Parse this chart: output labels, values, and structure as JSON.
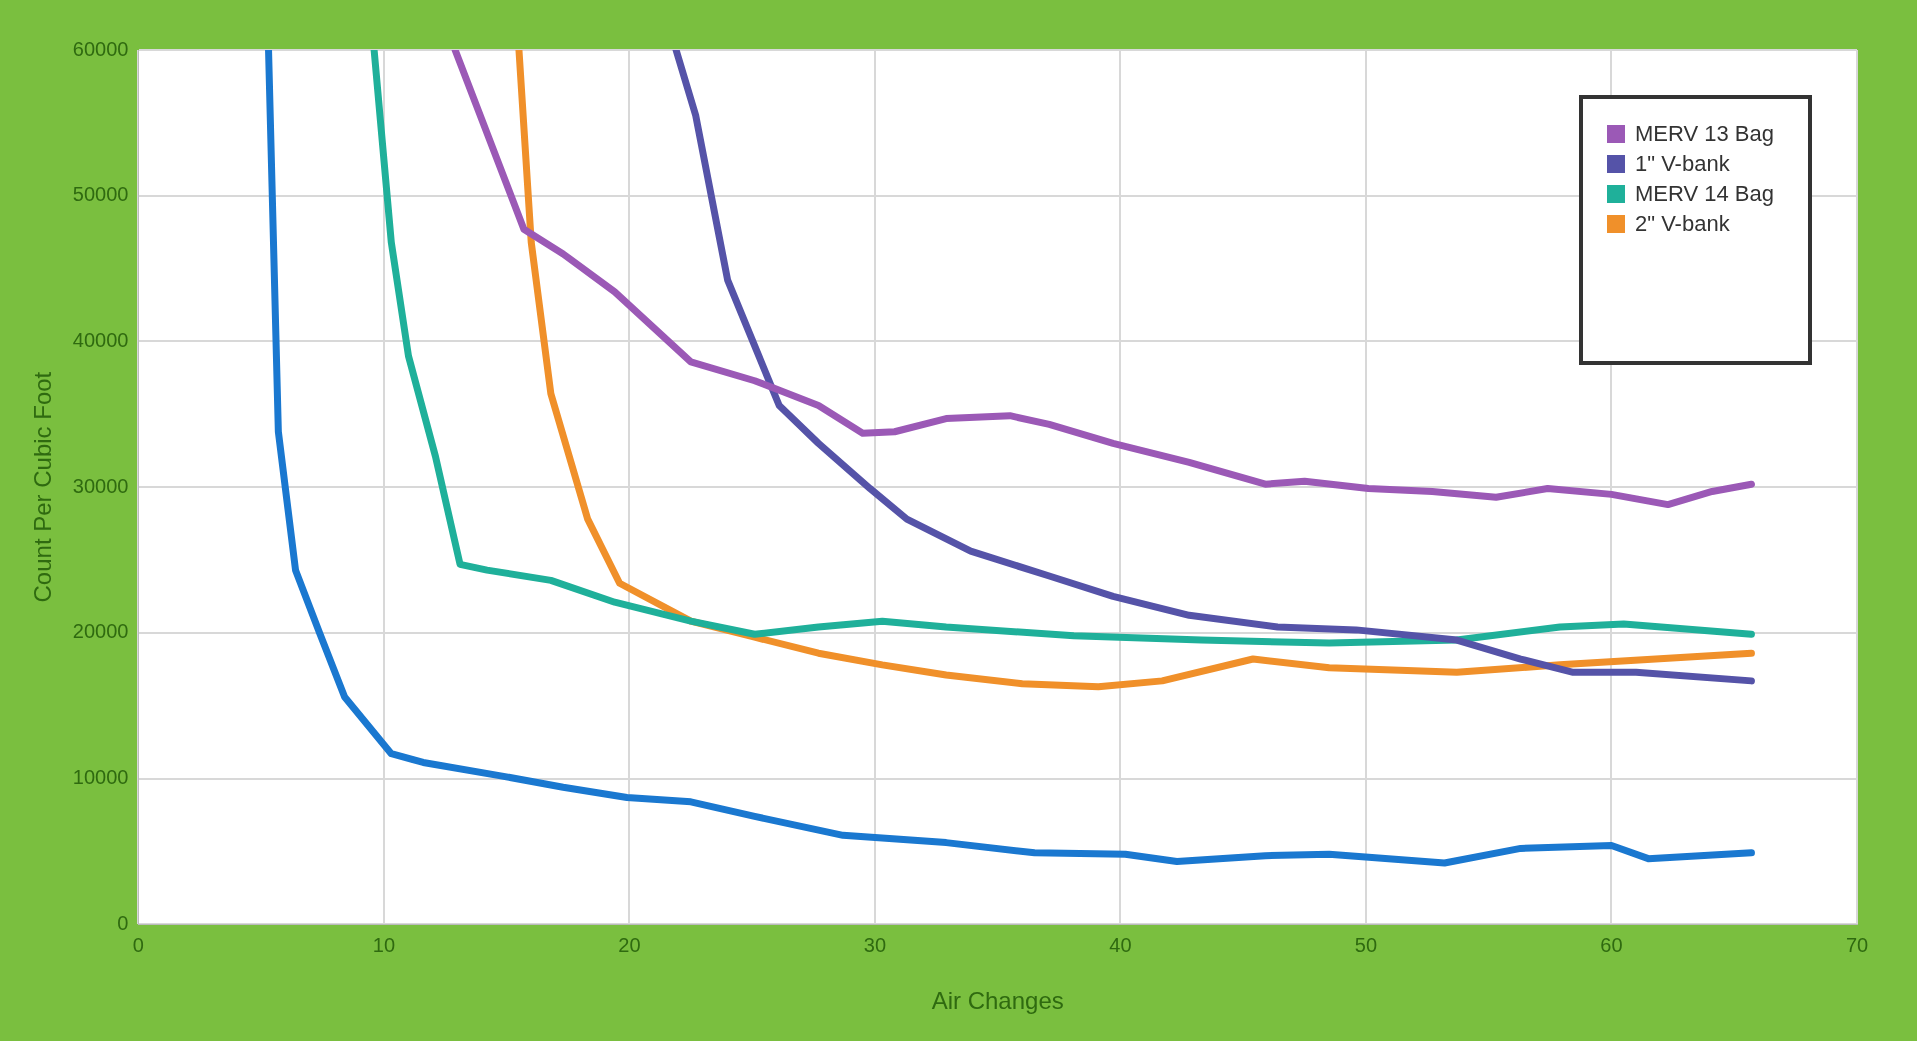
{
  "chart_data": {
    "type": "line",
    "xlabel": "Air Changes",
    "ylabel": "Count Per Cubic Foot",
    "xlim": [
      0,
      70
    ],
    "xticks": [
      0,
      10,
      20,
      30,
      40,
      50,
      60,
      70
    ],
    "ylim": [
      0,
      60000
    ],
    "yticks": [
      0,
      10000,
      20000,
      30000,
      40000,
      50000,
      60000
    ],
    "grid": true,
    "legend": "top right",
    "marker": "none",
    "line_style": "solid",
    "series": [
      {
        "name": "MERV 13 Bag",
        "color": "#9b59b6",
        "x": [
          12.9,
          15.7,
          17.3,
          19.4,
          22.5,
          25.1,
          27.7,
          29.5,
          30.8,
          32.9,
          35.5,
          37.1,
          39.7,
          42.8,
          45.9,
          47.5,
          50.1,
          52.7,
          55.3,
          57.4,
          60,
          62.3,
          64.1,
          65.7
        ],
        "values": [
          60000,
          47700,
          46000,
          43400,
          38600,
          37300,
          35600,
          33700,
          33800,
          34700,
          34900,
          34300,
          33000,
          31700,
          30200,
          30400,
          29900,
          29700,
          29300,
          29900,
          29500,
          28800,
          29700,
          30200
        ]
      },
      {
        "name": "1\" V-bank",
        "color": "#5553a8",
        "x": [
          21.9,
          22.7,
          24,
          26.1,
          27.7,
          29.8,
          31.3,
          33.9,
          37.1,
          39.7,
          42.8,
          46.4,
          49.6,
          53.7,
          56.3,
          58.4,
          61,
          65.7
        ],
        "values": [
          60000,
          55500,
          44200,
          35600,
          33000,
          29900,
          27800,
          25600,
          23900,
          22500,
          21200,
          20400,
          20200,
          19500,
          18200,
          17300,
          17300,
          16700
        ]
      },
      {
        "name": "MERV 14 Bag",
        "color": "#1fb09a",
        "x": [
          9.6,
          10.3,
          11,
          12.1,
          13.1,
          14.2,
          16.8,
          19.4,
          22.5,
          25.1,
          27.7,
          30.3,
          32.9,
          38.1,
          43.3,
          48.5,
          53.7,
          57.9,
          60.5,
          65.7
        ],
        "values": [
          60000,
          46800,
          39000,
          32100,
          24700,
          24300,
          23600,
          22100,
          20800,
          19900,
          20400,
          20800,
          20400,
          19800,
          19500,
          19300,
          19500,
          20400,
          20600,
          19900
        ]
      },
      {
        "name": "2\" V-bank",
        "color": "#f0902a",
        "x": [
          15.5,
          16,
          16.8,
          18.3,
          19.6,
          22.5,
          25.1,
          27.7,
          30.3,
          32.9,
          36,
          39.1,
          41.7,
          45.4,
          48.5,
          53.7,
          57.9,
          65.7
        ],
        "values": [
          60000,
          46800,
          36400,
          27800,
          23400,
          20800,
          19700,
          18600,
          17800,
          17100,
          16500,
          16300,
          16700,
          18200,
          17600,
          17300,
          17800,
          18600
        ]
      },
      {
        "color": "#1a78d0",
        "x": [
          5.3,
          5.7,
          6.4,
          7.4,
          8.4,
          10.3,
          11.6,
          14.7,
          17.3,
          19.9,
          22.5,
          25.1,
          28.7,
          32.9,
          36.5,
          40.2,
          42.3,
          45.9,
          48.5,
          53.2,
          56.3,
          60,
          61.5,
          65.7
        ],
        "values": [
          60000,
          33800,
          24300,
          19900,
          15600,
          11700,
          11100,
          10200,
          9400,
          8700,
          8400,
          7400,
          6100,
          5600,
          4900,
          4800,
          4300,
          4700,
          4800,
          4200,
          5200,
          5400,
          4500,
          4900
        ]
      }
    ]
  }
}
